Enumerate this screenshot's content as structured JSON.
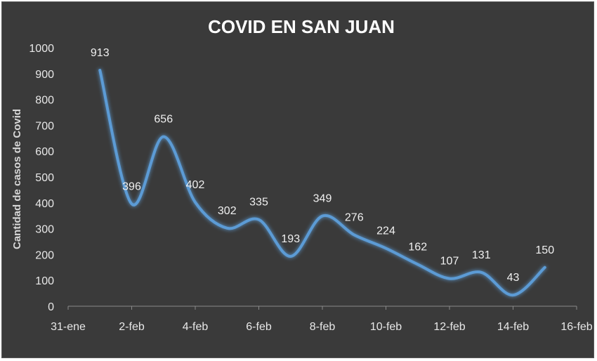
{
  "chart_data": {
    "type": "line",
    "title": "COVID EN SAN JUAN",
    "xlabel": "",
    "ylabel": "Cantidad de casos de Covid",
    "ylim": [
      0,
      1000
    ],
    "y_ticks": [
      "0",
      "100",
      "200",
      "300",
      "400",
      "500",
      "600",
      "700",
      "800",
      "900",
      "1000"
    ],
    "x_ticks": [
      "31-ene",
      "2-feb",
      "4-feb",
      "6-feb",
      "8-feb",
      "10-feb",
      "12-feb",
      "14-feb",
      "16-feb"
    ],
    "x_dates": [
      "31-ene",
      "1-feb",
      "2-feb",
      "3-feb",
      "4-feb",
      "5-feb",
      "6-feb",
      "7-feb",
      "8-feb",
      "9-feb",
      "10-feb",
      "11-feb",
      "12-feb",
      "13-feb",
      "14-feb",
      "15-feb",
      "16-feb"
    ],
    "grid": false,
    "series": [
      {
        "x": [
          "1-feb",
          "2-feb",
          "3-feb",
          "4-feb",
          "5-feb",
          "6-feb",
          "7-feb",
          "8-feb",
          "9-feb",
          "10-feb",
          "11-feb",
          "12-feb",
          "13-feb",
          "14-feb",
          "15-feb"
        ],
        "values": [
          913,
          396,
          656,
          402,
          302,
          335,
          193,
          349,
          276,
          224,
          162,
          107,
          131,
          43,
          150
        ],
        "color": "#5b9bd5"
      }
    ]
  }
}
